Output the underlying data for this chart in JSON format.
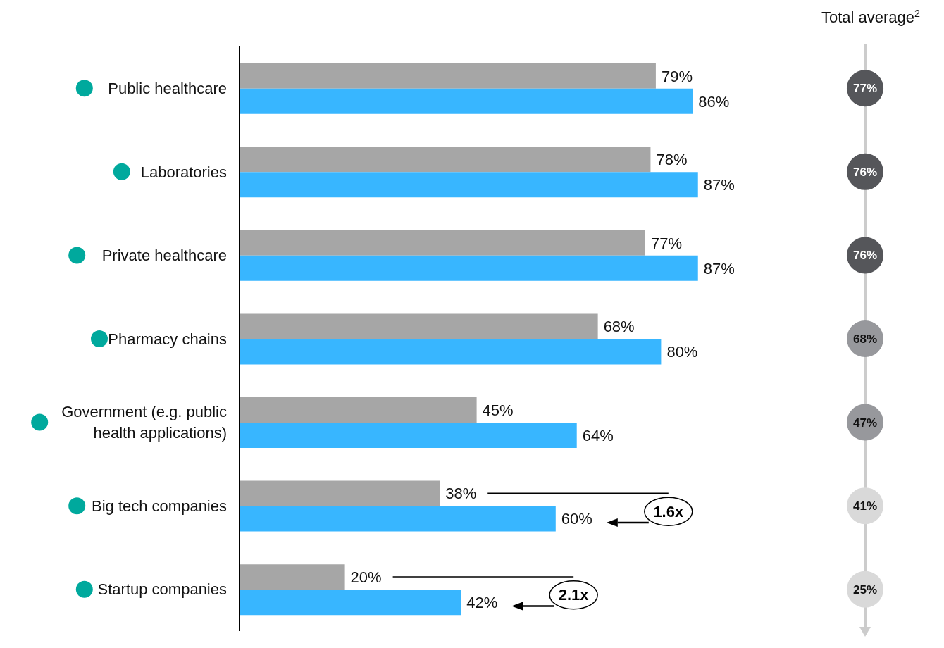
{
  "chart_data": [
    {
      "type": "bar",
      "orientation": "horizontal",
      "categories": [
        "Public healthcare",
        "Laboratories",
        "Private healthcare",
        "Pharmacy chains",
        "Government (e.g. public health applications)",
        "Big tech companies",
        "Startup companies"
      ],
      "series": [
        {
          "color": "#a6a6a6",
          "values": [
            79,
            78,
            77,
            68,
            45,
            38,
            20
          ],
          "value_labels": [
            "79%",
            "78%",
            "77%",
            "68%",
            "45%",
            "38%",
            "20%"
          ]
        },
        {
          "color": "#38b6ff",
          "values": [
            86,
            87,
            87,
            80,
            64,
            60,
            42
          ],
          "value_labels": [
            "86%",
            "87%",
            "87%",
            "80%",
            "64%",
            "60%",
            "42%"
          ]
        }
      ],
      "tick_labels": "y",
      "annotations": [
        "1.6x",
        "2.1x"
      ]
    },
    {
      "type": "other",
      "title": "Total average$^{2}$",
      "categories": [
        null,
        null,
        null,
        null,
        null,
        null,
        null
      ],
      "value_labels": [
        "77%",
        "76%",
        "76%",
        "68%",
        "47%",
        "41%",
        "25%"
      ],
      "colors": [
        "#55565a",
        "#55565a",
        "#55565a",
        "#97989c",
        "#97989c",
        "#d9d9d9",
        "#d9d9d9"
      ]
    }
  ]
}
